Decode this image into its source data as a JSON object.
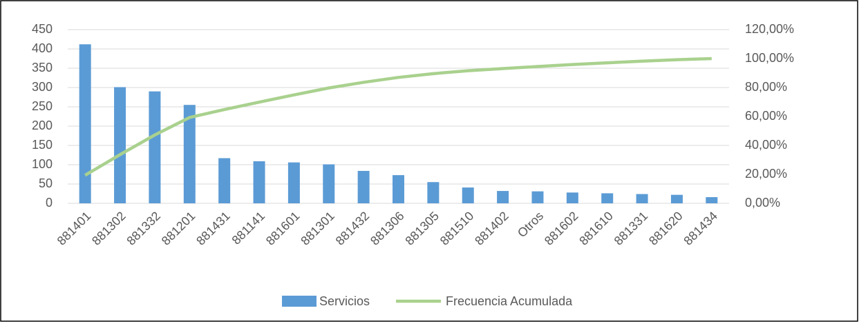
{
  "chart_data": {
    "type": "bar",
    "categories": [
      "881401",
      "881302",
      "881332",
      "881201",
      "881431",
      "881141",
      "881601",
      "881301",
      "881432",
      "881306",
      "881305",
      "881510",
      "881402",
      "Otros",
      "881602",
      "881610",
      "881331",
      "881620",
      "881434"
    ],
    "series": [
      {
        "name": "Servicios",
        "color": "#5b9bd5",
        "type": "bar",
        "values": [
          412,
          301,
          290,
          255,
          117,
          109,
          106,
          101,
          84,
          73,
          55,
          41,
          32,
          31,
          28,
          26,
          24,
          22,
          16
        ]
      },
      {
        "name": "Frecuencia Acumulada",
        "color": "#a9d18e",
        "type": "line",
        "axis": "y2",
        "values": [
          19.4,
          33.6,
          47.2,
          59.3,
          64.8,
          69.9,
          74.9,
          79.7,
          83.6,
          87.0,
          89.6,
          91.6,
          93.1,
          94.5,
          95.9,
          97.1,
          98.2,
          99.2,
          100
        ]
      }
    ],
    "ylim": [
      0,
      450
    ],
    "yticks": [
      0,
      50,
      100,
      150,
      200,
      250,
      300,
      350,
      400,
      450
    ],
    "y2lim": [
      0,
      120
    ],
    "y2ticks": [
      {
        "value": 0,
        "label": "0,00%"
      },
      {
        "value": 20,
        "label": "20,00%"
      },
      {
        "value": 40,
        "label": "40,00%"
      },
      {
        "value": 60,
        "label": "60,00%"
      },
      {
        "value": 80,
        "label": "80,00%"
      },
      {
        "value": 100,
        "label": "100,00%"
      },
      {
        "value": 120,
        "label": "120,00%"
      }
    ],
    "grid": true,
    "legend": "bottom"
  }
}
